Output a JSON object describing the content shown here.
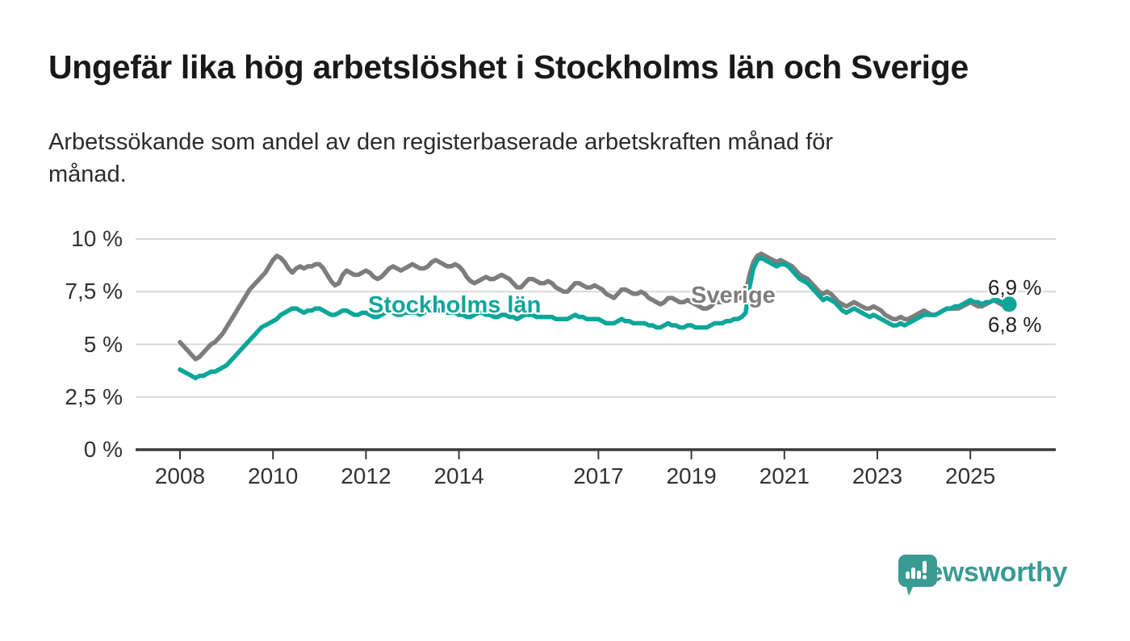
{
  "header": {
    "title": "Ungefär lika hög arbetslöshet i Stockholms län och Sverige",
    "subtitle": "Arbetssökande som andel av den registerbaserade arbetskraften månad för månad."
  },
  "chart_data": {
    "type": "line",
    "title": "Ungefär lika hög arbetslöshet i Stockholms län och Sverige",
    "subtitle": "Arbetssökande som andel av den registerbaserade arbetskraften månad för månad.",
    "x_start_year": 2008,
    "x_frequency": "monthly",
    "x_end": "2025-11",
    "ylim": [
      0,
      10
    ],
    "grid": "horizontal",
    "yticks": [
      {
        "value": 10,
        "label": "10 %"
      },
      {
        "value": 7.5,
        "label": "7,5 %"
      },
      {
        "value": 5,
        "label": "5 %"
      },
      {
        "value": 2.5,
        "label": "2,5 %"
      },
      {
        "value": 0,
        "label": "0 %"
      }
    ],
    "xticks": [
      {
        "year": 2008,
        "label": "2008"
      },
      {
        "year": 2010,
        "label": "2010"
      },
      {
        "year": 2012,
        "label": "2012"
      },
      {
        "year": 2014,
        "label": "2014"
      },
      {
        "year": 2017,
        "label": "2017"
      },
      {
        "year": 2019,
        "label": "2019"
      },
      {
        "year": 2021,
        "label": "2021"
      },
      {
        "year": 2023,
        "label": "2023"
      },
      {
        "year": 2025,
        "label": "2025"
      }
    ],
    "series": [
      {
        "name": "Sverige",
        "color": "#7d7d7d",
        "end_dot": false,
        "last_value_label": "6,8 %",
        "values": [
          5.1,
          4.9,
          4.7,
          4.5,
          4.3,
          4.4,
          4.6,
          4.8,
          5.0,
          5.1,
          5.3,
          5.5,
          5.8,
          6.1,
          6.4,
          6.7,
          7.0,
          7.3,
          7.6,
          7.8,
          8.0,
          8.2,
          8.4,
          8.7,
          9.0,
          9.2,
          9.1,
          8.9,
          8.6,
          8.4,
          8.6,
          8.7,
          8.6,
          8.7,
          8.7,
          8.8,
          8.8,
          8.6,
          8.3,
          8.0,
          7.8,
          7.9,
          8.3,
          8.5,
          8.4,
          8.3,
          8.3,
          8.4,
          8.5,
          8.4,
          8.2,
          8.1,
          8.2,
          8.4,
          8.6,
          8.7,
          8.6,
          8.5,
          8.6,
          8.7,
          8.8,
          8.7,
          8.6,
          8.6,
          8.7,
          8.9,
          9.0,
          8.9,
          8.8,
          8.7,
          8.7,
          8.8,
          8.7,
          8.5,
          8.2,
          8.0,
          7.9,
          8.0,
          8.1,
          8.2,
          8.1,
          8.1,
          8.2,
          8.3,
          8.2,
          8.1,
          7.9,
          7.7,
          7.7,
          7.9,
          8.1,
          8.1,
          8.0,
          7.9,
          7.9,
          8.0,
          7.9,
          7.7,
          7.6,
          7.5,
          7.5,
          7.7,
          7.9,
          7.9,
          7.8,
          7.7,
          7.7,
          7.8,
          7.7,
          7.6,
          7.4,
          7.3,
          7.2,
          7.4,
          7.6,
          7.6,
          7.5,
          7.4,
          7.4,
          7.5,
          7.4,
          7.2,
          7.1,
          7.0,
          6.9,
          7.0,
          7.2,
          7.2,
          7.1,
          7.0,
          7.0,
          7.1,
          7.0,
          6.9,
          6.8,
          6.7,
          6.7,
          6.8,
          7.0,
          7.0,
          7.0,
          7.1,
          7.1,
          7.2,
          7.2,
          7.2,
          7.4,
          8.3,
          8.9,
          9.2,
          9.3,
          9.2,
          9.1,
          9.0,
          8.9,
          9.0,
          8.9,
          8.8,
          8.7,
          8.5,
          8.3,
          8.2,
          8.1,
          7.9,
          7.7,
          7.5,
          7.4,
          7.5,
          7.4,
          7.2,
          7.0,
          6.9,
          6.8,
          6.9,
          7.0,
          6.9,
          6.8,
          6.7,
          6.7,
          6.8,
          6.7,
          6.6,
          6.4,
          6.3,
          6.2,
          6.2,
          6.3,
          6.2,
          6.2,
          6.3,
          6.4,
          6.5,
          6.6,
          6.5,
          6.4,
          6.4,
          6.5,
          6.6,
          6.7,
          6.7,
          6.7,
          6.7,
          6.8,
          6.9,
          7.0,
          6.9,
          6.8,
          6.8,
          6.9,
          7.0,
          7.1,
          7.0,
          6.9,
          6.8,
          6.8
        ]
      },
      {
        "name": "Stockholms län",
        "color": "#0da69a",
        "end_dot": true,
        "last_value_label": "6,9 %",
        "values": [
          3.8,
          3.7,
          3.6,
          3.5,
          3.4,
          3.5,
          3.5,
          3.6,
          3.7,
          3.7,
          3.8,
          3.9,
          4.0,
          4.2,
          4.4,
          4.6,
          4.8,
          5.0,
          5.2,
          5.4,
          5.6,
          5.8,
          5.9,
          6.0,
          6.1,
          6.2,
          6.4,
          6.5,
          6.6,
          6.7,
          6.7,
          6.6,
          6.5,
          6.6,
          6.6,
          6.7,
          6.7,
          6.6,
          6.5,
          6.4,
          6.4,
          6.5,
          6.6,
          6.6,
          6.5,
          6.4,
          6.4,
          6.5,
          6.5,
          6.4,
          6.3,
          6.3,
          6.4,
          6.5,
          6.6,
          6.5,
          6.4,
          6.4,
          6.5,
          6.5,
          6.5,
          6.5,
          6.4,
          6.5,
          6.6,
          6.7,
          6.7,
          6.6,
          6.6,
          6.5,
          6.5,
          6.5,
          6.4,
          6.4,
          6.3,
          6.3,
          6.4,
          6.5,
          6.5,
          6.4,
          6.4,
          6.3,
          6.3,
          6.4,
          6.4,
          6.3,
          6.3,
          6.2,
          6.3,
          6.4,
          6.4,
          6.4,
          6.3,
          6.3,
          6.3,
          6.3,
          6.3,
          6.2,
          6.2,
          6.2,
          6.2,
          6.3,
          6.4,
          6.3,
          6.3,
          6.2,
          6.2,
          6.2,
          6.2,
          6.1,
          6.0,
          6.0,
          6.0,
          6.1,
          6.2,
          6.1,
          6.1,
          6.0,
          6.0,
          6.0,
          6.0,
          5.9,
          5.9,
          5.8,
          5.8,
          5.9,
          6.0,
          5.9,
          5.9,
          5.8,
          5.8,
          5.9,
          5.9,
          5.8,
          5.8,
          5.8,
          5.8,
          5.9,
          6.0,
          6.0,
          6.0,
          6.1,
          6.1,
          6.2,
          6.2,
          6.3,
          6.5,
          7.7,
          8.6,
          9.0,
          9.1,
          9.0,
          8.9,
          8.8,
          8.7,
          8.8,
          8.8,
          8.7,
          8.5,
          8.3,
          8.1,
          8.0,
          7.9,
          7.7,
          7.5,
          7.3,
          7.1,
          7.2,
          7.1,
          7.0,
          6.8,
          6.6,
          6.5,
          6.6,
          6.7,
          6.6,
          6.5,
          6.4,
          6.3,
          6.4,
          6.3,
          6.2,
          6.1,
          6.0,
          5.9,
          5.9,
          6.0,
          5.9,
          6.0,
          6.1,
          6.2,
          6.3,
          6.4,
          6.4,
          6.4,
          6.4,
          6.5,
          6.6,
          6.7,
          6.7,
          6.8,
          6.8,
          6.9,
          7.0,
          7.1,
          7.0,
          7.0,
          6.9,
          7.0,
          7.0,
          7.1,
          7.1,
          7.0,
          6.9,
          6.9
        ]
      }
    ],
    "end_labels": [
      {
        "text": "6,9 %",
        "series": "Stockholms län"
      },
      {
        "text": "6,8 %",
        "series": "Sverige"
      }
    ],
    "colors": {
      "grid": "#d9d9d9",
      "axis": "#3a3a3a",
      "tick_text": "#333333"
    }
  },
  "branding": {
    "logo_text": "Newsworthy",
    "logo_color": "#3a9a94",
    "logo_icon": "bar-chart-speech-bubble-icon"
  }
}
